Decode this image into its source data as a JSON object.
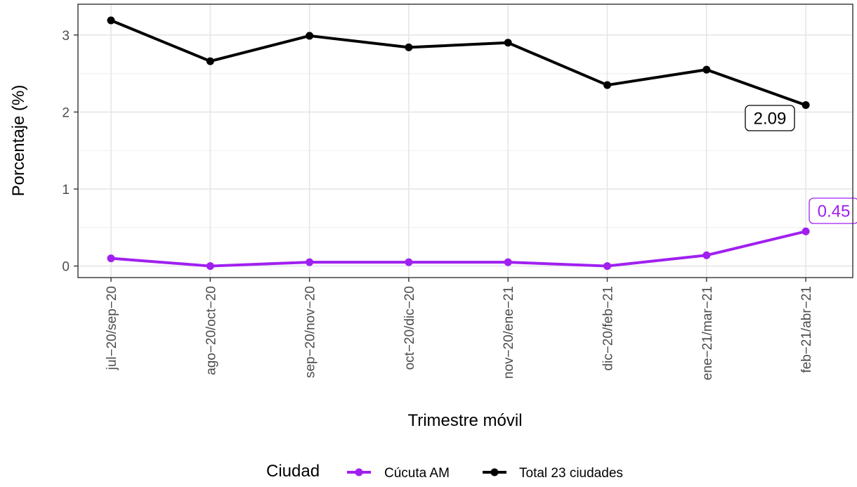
{
  "chart_data": {
    "type": "line",
    "xlabel": "Trimestre móvil",
    "ylabel": "Porcentaje (%)",
    "categories": [
      "jul−20/sep−20",
      "ago−20/oct−20",
      "sep−20/nov−20",
      "oct−20/dic−20",
      "nov−20/ene−21",
      "dic−20/feb−21",
      "ene−21/mar−21",
      "feb−21/abr−21"
    ],
    "yticks": [
      0,
      1,
      2,
      3
    ],
    "ylim": [
      -0.15,
      3.4
    ],
    "grid": true,
    "legend": {
      "title": "Ciudad",
      "placement": "bottom"
    },
    "series": [
      {
        "name": "Cúcuta AM",
        "color": "#a020f0",
        "values": [
          0.1,
          0.0,
          0.05,
          0.05,
          0.05,
          0.0,
          0.14,
          0.45
        ],
        "end_label": "0.45"
      },
      {
        "name": "Total 23 ciudades",
        "color": "#000000",
        "values": [
          3.19,
          2.66,
          2.99,
          2.84,
          2.9,
          2.35,
          2.55,
          2.09
        ],
        "end_label": "2.09"
      }
    ]
  }
}
